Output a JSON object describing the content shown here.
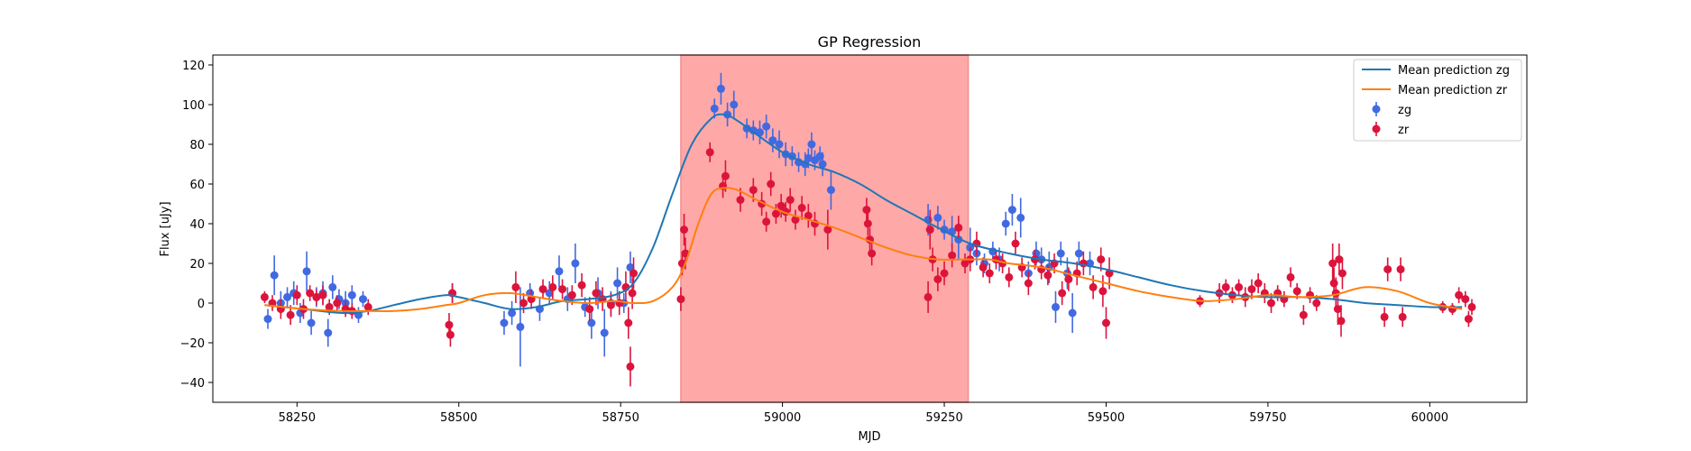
{
  "chart_data": {
    "type": "scatter",
    "title": "GP Regression",
    "xlabel": "MJD",
    "ylabel": "Flux [uJy]",
    "xlim": [
      58120,
      60150
    ],
    "ylim": [
      -50,
      125
    ],
    "xticks": [
      58250,
      58500,
      58750,
      59000,
      59250,
      59500,
      59750,
      60000
    ],
    "yticks": [
      -40,
      -20,
      0,
      20,
      40,
      60,
      80,
      100,
      120
    ],
    "grid": false,
    "legend_position": "top-right",
    "shaded_region": {
      "x0": 58843,
      "x1": 59287,
      "color": "#ffa8a8"
    },
    "lines": [
      {
        "name": "Mean prediction zg",
        "color": "#1f77b4",
        "x": [
          58200,
          58260,
          58320,
          58360,
          58400,
          58440,
          58480,
          58500,
          58540,
          58580,
          58620,
          58660,
          58700,
          58740,
          58770,
          58800,
          58830,
          58860,
          58890,
          58910,
          58930,
          58960,
          59000,
          59040,
          59080,
          59120,
          59160,
          59200,
          59240,
          59290,
          59350,
          59400,
          59450,
          59500,
          59550,
          59600,
          59650,
          59700,
          59750,
          59800,
          59850,
          59900,
          59950,
          60000,
          60050
        ],
        "y": [
          -1,
          -3,
          -5,
          -4,
          -1,
          2,
          4,
          3,
          0,
          -3,
          -2,
          1,
          2,
          4,
          10,
          28,
          55,
          80,
          93,
          95,
          92,
          85,
          76,
          70,
          66,
          60,
          52,
          45,
          38,
          30,
          25,
          22,
          20,
          17,
          13,
          9,
          6,
          4,
          3,
          3,
          2,
          0,
          -1,
          -2,
          -2
        ]
      },
      {
        "name": "Mean prediction zr",
        "color": "#ff7f0e",
        "x": [
          58200,
          58260,
          58320,
          58360,
          58400,
          58440,
          58480,
          58500,
          58540,
          58580,
          58620,
          58660,
          58700,
          58740,
          58770,
          58800,
          58830,
          58850,
          58870,
          58890,
          58910,
          58930,
          58960,
          59000,
          59040,
          59080,
          59120,
          59160,
          59200,
          59240,
          59280,
          59290,
          59320,
          59350,
          59400,
          59450,
          59500,
          59550,
          59600,
          59650,
          59700,
          59750,
          59800,
          59850,
          59900,
          59950,
          60000,
          60050
        ],
        "y": [
          -1,
          -3,
          -4,
          -4,
          -4,
          -3,
          -1,
          0,
          4,
          5,
          3,
          1,
          0,
          1,
          0,
          1,
          8,
          20,
          40,
          55,
          58,
          57,
          52,
          46,
          42,
          38,
          33,
          28,
          24,
          22,
          22,
          22,
          22,
          20,
          18,
          14,
          10,
          6,
          3,
          1,
          2,
          4,
          3,
          4,
          8,
          6,
          0,
          -3
        ]
      }
    ],
    "series": [
      {
        "name": "zg",
        "color": "#4169e1",
        "points": [
          [
            58205,
            -8,
            5
          ],
          [
            58215,
            14,
            10
          ],
          [
            58225,
            0,
            6
          ],
          [
            58235,
            3,
            5
          ],
          [
            58245,
            5,
            6
          ],
          [
            58255,
            -5,
            5
          ],
          [
            58265,
            16,
            10
          ],
          [
            58272,
            -10,
            6
          ],
          [
            58280,
            3,
            5
          ],
          [
            58290,
            5,
            6
          ],
          [
            58298,
            -15,
            7
          ],
          [
            58305,
            8,
            6
          ],
          [
            58315,
            2,
            5
          ],
          [
            58325,
            0,
            6
          ],
          [
            58335,
            4,
            5
          ],
          [
            58345,
            -6,
            4
          ],
          [
            58352,
            2,
            4
          ],
          [
            58490,
            5,
            5
          ],
          [
            58570,
            -10,
            6
          ],
          [
            58582,
            -5,
            6
          ],
          [
            58595,
            -12,
            20
          ],
          [
            58610,
            5,
            5
          ],
          [
            58625,
            -3,
            6
          ],
          [
            58640,
            5,
            6
          ],
          [
            58655,
            16,
            8
          ],
          [
            58668,
            2,
            6
          ],
          [
            58680,
            20,
            10
          ],
          [
            58695,
            -2,
            5
          ],
          [
            58705,
            -10,
            8
          ],
          [
            58715,
            5,
            8
          ],
          [
            58725,
            -15,
            12
          ],
          [
            58735,
            0,
            6
          ],
          [
            58745,
            10,
            8
          ],
          [
            58755,
            0,
            5
          ],
          [
            58765,
            18,
            8
          ],
          [
            58895,
            98,
            5
          ],
          [
            58905,
            108,
            8
          ],
          [
            58915,
            95,
            6
          ],
          [
            58925,
            100,
            7
          ],
          [
            58945,
            88,
            5
          ],
          [
            58955,
            87,
            5
          ],
          [
            58965,
            86,
            6
          ],
          [
            58975,
            89,
            6
          ],
          [
            58985,
            82,
            6
          ],
          [
            58995,
            80,
            7
          ],
          [
            59005,
            75,
            6
          ],
          [
            59015,
            74,
            5
          ],
          [
            59025,
            71,
            5
          ],
          [
            59035,
            70,
            6
          ],
          [
            59040,
            73,
            5
          ],
          [
            59045,
            80,
            6
          ],
          [
            59050,
            72,
            5
          ],
          [
            59058,
            74,
            5
          ],
          [
            59062,
            70,
            6
          ],
          [
            59075,
            57,
            10
          ],
          [
            59225,
            42,
            8
          ],
          [
            59240,
            43,
            6
          ],
          [
            59250,
            37,
            5
          ],
          [
            59262,
            36,
            8
          ],
          [
            59272,
            32,
            10
          ],
          [
            59290,
            28,
            10
          ],
          [
            59300,
            25,
            6
          ],
          [
            59312,
            20,
            5
          ],
          [
            59325,
            26,
            5
          ],
          [
            59335,
            22,
            6
          ],
          [
            59345,
            40,
            6
          ],
          [
            59355,
            47,
            8
          ],
          [
            59368,
            43,
            10
          ],
          [
            59380,
            15,
            6
          ],
          [
            59392,
            25,
            6
          ],
          [
            59400,
            22,
            6
          ],
          [
            59412,
            18,
            8
          ],
          [
            59422,
            -2,
            8
          ],
          [
            59430,
            25,
            6
          ],
          [
            59440,
            15,
            8
          ],
          [
            59448,
            -5,
            10
          ],
          [
            59458,
            25,
            6
          ],
          [
            59475,
            20,
            6
          ]
        ]
      },
      {
        "name": "zr",
        "color": "#dc143c",
        "points": [
          [
            58200,
            3,
            3
          ],
          [
            58212,
            0,
            4
          ],
          [
            58225,
            -3,
            5
          ],
          [
            58240,
            -6,
            5
          ],
          [
            58250,
            4,
            5
          ],
          [
            58260,
            -3,
            5
          ],
          [
            58270,
            5,
            4
          ],
          [
            58280,
            3,
            4
          ],
          [
            58290,
            4,
            5
          ],
          [
            58300,
            -2,
            4
          ],
          [
            58312,
            0,
            4
          ],
          [
            58325,
            -3,
            4
          ],
          [
            58335,
            -4,
            4
          ],
          [
            58360,
            -2,
            4
          ],
          [
            58485,
            -11,
            6
          ],
          [
            58487,
            -16,
            6
          ],
          [
            58490,
            5,
            5
          ],
          [
            58588,
            8,
            8
          ],
          [
            58600,
            0,
            5
          ],
          [
            58612,
            2,
            5
          ],
          [
            58630,
            7,
            5
          ],
          [
            58645,
            8,
            6
          ],
          [
            58660,
            7,
            5
          ],
          [
            58675,
            4,
            5
          ],
          [
            58690,
            9,
            6
          ],
          [
            58702,
            -3,
            6
          ],
          [
            58712,
            5,
            6
          ],
          [
            58722,
            2,
            6
          ],
          [
            58735,
            -1,
            6
          ],
          [
            58748,
            0,
            6
          ],
          [
            58758,
            8,
            8
          ],
          [
            58762,
            -10,
            8
          ],
          [
            58765,
            -32,
            10
          ],
          [
            58768,
            5,
            8
          ],
          [
            58770,
            15,
            8
          ],
          [
            58843,
            2,
            6
          ],
          [
            58845,
            20,
            6
          ],
          [
            58848,
            37,
            8
          ],
          [
            58850,
            25,
            8
          ],
          [
            58888,
            76,
            5
          ],
          [
            58908,
            59,
            6
          ],
          [
            58912,
            64,
            8
          ],
          [
            58935,
            52,
            6
          ],
          [
            58955,
            57,
            6
          ],
          [
            58968,
            50,
            6
          ],
          [
            58975,
            41,
            5
          ],
          [
            58982,
            60,
            6
          ],
          [
            58990,
            45,
            5
          ],
          [
            58998,
            49,
            6
          ],
          [
            59005,
            46,
            5
          ],
          [
            59012,
            52,
            6
          ],
          [
            59020,
            42,
            5
          ],
          [
            59030,
            48,
            6
          ],
          [
            59040,
            44,
            6
          ],
          [
            59050,
            40,
            6
          ],
          [
            59070,
            37,
            10
          ],
          [
            59130,
            47,
            6
          ],
          [
            59132,
            40,
            6
          ],
          [
            59135,
            32,
            6
          ],
          [
            59138,
            25,
            6
          ],
          [
            59225,
            3,
            8
          ],
          [
            59228,
            37,
            10
          ],
          [
            59232,
            22,
            6
          ],
          [
            59240,
            12,
            6
          ],
          [
            59250,
            15,
            6
          ],
          [
            59262,
            24,
            6
          ],
          [
            59272,
            38,
            6
          ],
          [
            59282,
            20,
            5
          ],
          [
            59290,
            22,
            6
          ],
          [
            59300,
            30,
            6
          ],
          [
            59310,
            18,
            5
          ],
          [
            59320,
            15,
            5
          ],
          [
            59330,
            22,
            5
          ],
          [
            59340,
            20,
            5
          ],
          [
            59350,
            13,
            5
          ],
          [
            59360,
            30,
            6
          ],
          [
            59370,
            18,
            5
          ],
          [
            59380,
            10,
            6
          ],
          [
            59390,
            22,
            5
          ],
          [
            59400,
            17,
            5
          ],
          [
            59410,
            14,
            5
          ],
          [
            59420,
            20,
            5
          ],
          [
            59432,
            5,
            6
          ],
          [
            59442,
            12,
            6
          ],
          [
            59455,
            15,
            6
          ],
          [
            59465,
            20,
            6
          ],
          [
            59480,
            8,
            6
          ],
          [
            59492,
            22,
            6
          ],
          [
            59495,
            6,
            8
          ],
          [
            59500,
            -10,
            8
          ],
          [
            59505,
            15,
            8
          ],
          [
            59645,
            1,
            3
          ],
          [
            59675,
            5,
            5
          ],
          [
            59685,
            8,
            4
          ],
          [
            59695,
            4,
            4
          ],
          [
            59705,
            8,
            4
          ],
          [
            59715,
            3,
            5
          ],
          [
            59725,
            7,
            5
          ],
          [
            59735,
            10,
            5
          ],
          [
            59745,
            5,
            5
          ],
          [
            59755,
            0,
            5
          ],
          [
            59765,
            5,
            4
          ],
          [
            59775,
            2,
            4
          ],
          [
            59785,
            13,
            5
          ],
          [
            59795,
            6,
            4
          ],
          [
            59805,
            -6,
            5
          ],
          [
            59815,
            4,
            4
          ],
          [
            59825,
            0,
            4
          ],
          [
            59850,
            20,
            10
          ],
          [
            59852,
            10,
            8
          ],
          [
            59855,
            5,
            8
          ],
          [
            59858,
            -3,
            8
          ],
          [
            59860,
            22,
            8
          ],
          [
            59863,
            -9,
            8
          ],
          [
            59865,
            15,
            8
          ],
          [
            59930,
            -7,
            5
          ],
          [
            59935,
            17,
            6
          ],
          [
            59955,
            17,
            6
          ],
          [
            59958,
            -7,
            5
          ],
          [
            60020,
            -2,
            3
          ],
          [
            60035,
            -3,
            3
          ],
          [
            60045,
            4,
            4
          ],
          [
            60055,
            2,
            4
          ],
          [
            60060,
            -8,
            4
          ],
          [
            60065,
            -2,
            4
          ]
        ]
      }
    ]
  }
}
